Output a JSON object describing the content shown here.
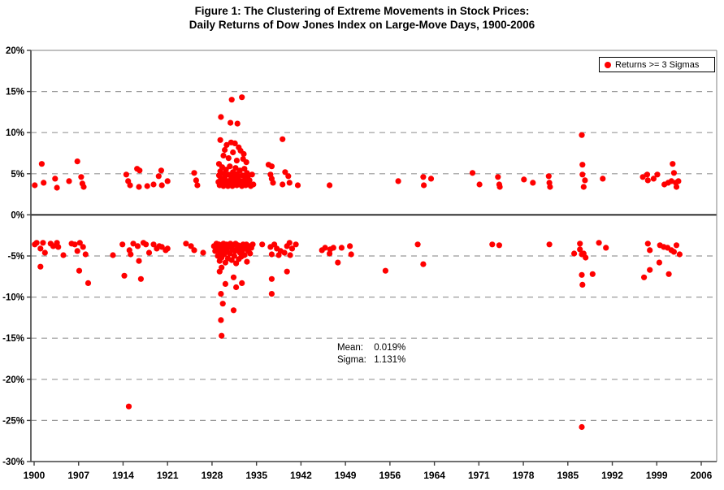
{
  "title": {
    "line1": "Figure 1: The Clustering of Extreme Movements in Stock Prices:",
    "line2": "Daily Returns of  Dow Jones Index on Large-Move Days, 1900-2006"
  },
  "legend": {
    "label": "Returns >= 3 Sigmas",
    "marker_color": "#FF0000"
  },
  "annotation": {
    "mean_label": "Mean:",
    "mean_value": "0.019%",
    "sigma_label": "Sigma:",
    "sigma_value": "1.131%"
  },
  "colors": {
    "point": "#FF0000",
    "gridline": "#999999",
    "zero_line": "#000000",
    "axis": "#404040",
    "border": "#808080",
    "text": "#000000"
  },
  "chart_data": {
    "type": "scatter",
    "title": "Figure 1: The Clustering of Extreme Movements in Stock Prices: Daily Returns of Dow Jones Index on Large-Move Days, 1900-2006",
    "xlabel": "",
    "ylabel": "",
    "legend_position": "top-right",
    "grid": "horizontal-dashed",
    "xlim": [
      1899.4,
      2008.5
    ],
    "ylim": [
      -30,
      20
    ],
    "x_ticks": [
      1900,
      1907,
      1914,
      1921,
      1928,
      1935,
      1942,
      1949,
      1956,
      1964,
      1971,
      1978,
      1985,
      1992,
      1999,
      2006
    ],
    "y_ticks": [
      {
        "value": 20,
        "label": "20%"
      },
      {
        "value": 15,
        "label": "15%"
      },
      {
        "value": 10,
        "label": "10%"
      },
      {
        "value": 5,
        "label": "5%"
      },
      {
        "value": 0,
        "label": "0%"
      },
      {
        "value": -5,
        "label": "-5%"
      },
      {
        "value": -10,
        "label": "-10%"
      },
      {
        "value": -15,
        "label": "-15%"
      },
      {
        "value": -20,
        "label": "-20%"
      },
      {
        "value": -25,
        "label": "-25%"
      },
      {
        "value": -30,
        "label": "-30%"
      }
    ],
    "series": [
      {
        "name": "Returns >= 3 Sigmas",
        "color": "#FF0000",
        "marker": "circle",
        "points": [
          [
            1900.1,
            3.6
          ],
          [
            1901.2,
            6.2
          ],
          [
            1901.5,
            3.9
          ],
          [
            1903.3,
            4.4
          ],
          [
            1903.6,
            3.3
          ],
          [
            1905.5,
            4.1
          ],
          [
            1906.8,
            6.5
          ],
          [
            1907.4,
            4.6
          ],
          [
            1907.6,
            3.8
          ],
          [
            1907.8,
            3.4
          ],
          [
            1914.5,
            4.9
          ],
          [
            1914.8,
            4.1
          ],
          [
            1915.1,
            3.6
          ],
          [
            1916.2,
            5.6
          ],
          [
            1916.6,
            5.4
          ],
          [
            1916.5,
            3.4
          ],
          [
            1917.8,
            3.5
          ],
          [
            1918.8,
            3.7
          ],
          [
            1919.6,
            4.7
          ],
          [
            1920.0,
            5.4
          ],
          [
            1920.1,
            3.6
          ],
          [
            1921.0,
            4.1
          ],
          [
            1925.2,
            5.1
          ],
          [
            1925.5,
            4.2
          ],
          [
            1925.7,
            3.6
          ],
          [
            1929.4,
            11.9
          ],
          [
            1930.9,
            11.2
          ],
          [
            1931.1,
            14.0
          ],
          [
            1932.0,
            11.1
          ],
          [
            1932.7,
            14.3
          ],
          [
            1929.3,
            9.1
          ],
          [
            1931.0,
            8.8
          ],
          [
            1930.3,
            8.5
          ],
          [
            1931.6,
            8.7
          ],
          [
            1932.2,
            8.2
          ],
          [
            1930.0,
            7.9
          ],
          [
            1931.3,
            7.6
          ],
          [
            1932.5,
            7.8
          ],
          [
            1933.0,
            7.4
          ],
          [
            1929.8,
            7.2
          ],
          [
            1930.6,
            6.9
          ],
          [
            1931.9,
            6.6
          ],
          [
            1932.9,
            6.8
          ],
          [
            1933.4,
            6.4
          ],
          [
            1929.1,
            6.2
          ],
          [
            1929.0,
            4.0
          ],
          [
            1929.1,
            4.8
          ],
          [
            1929.2,
            3.6
          ],
          [
            1929.3,
            5.3
          ],
          [
            1929.4,
            4.4
          ],
          [
            1929.5,
            3.8
          ],
          [
            1929.6,
            5.8
          ],
          [
            1929.7,
            4.2
          ],
          [
            1929.8,
            3.5
          ],
          [
            1929.9,
            5.0
          ],
          [
            1930.0,
            4.6
          ],
          [
            1930.1,
            3.7
          ],
          [
            1930.2,
            5.5
          ],
          [
            1930.4,
            4.1
          ],
          [
            1930.5,
            3.5
          ],
          [
            1930.6,
            4.9
          ],
          [
            1930.8,
            5.9
          ],
          [
            1930.9,
            3.8
          ],
          [
            1931.0,
            4.4
          ],
          [
            1931.2,
            3.5
          ],
          [
            1931.3,
            5.2
          ],
          [
            1931.4,
            4.7
          ],
          [
            1931.5,
            3.9
          ],
          [
            1931.7,
            5.7
          ],
          [
            1931.8,
            4.3
          ],
          [
            1931.9,
            3.6
          ],
          [
            1932.0,
            5.0
          ],
          [
            1932.1,
            4.5
          ],
          [
            1932.3,
            3.8
          ],
          [
            1932.4,
            5.4
          ],
          [
            1932.6,
            4.1
          ],
          [
            1932.7,
            3.5
          ],
          [
            1932.8,
            4.8
          ],
          [
            1933.0,
            3.9
          ],
          [
            1933.1,
            5.6
          ],
          [
            1933.2,
            4.3
          ],
          [
            1933.3,
            3.6
          ],
          [
            1933.5,
            5.1
          ],
          [
            1933.6,
            4.6
          ],
          [
            1933.7,
            3.8
          ],
          [
            1933.9,
            4.2
          ],
          [
            1934.1,
            3.5
          ],
          [
            1934.3,
            4.9
          ],
          [
            1934.5,
            3.7
          ],
          [
            1936.9,
            6.1
          ],
          [
            1937.2,
            4.9
          ],
          [
            1937.4,
            5.9
          ],
          [
            1937.4,
            4.4
          ],
          [
            1937.6,
            3.9
          ],
          [
            1939.1,
            9.2
          ],
          [
            1939.1,
            3.7
          ],
          [
            1939.5,
            5.2
          ],
          [
            1940.0,
            4.7
          ],
          [
            1940.2,
            3.9
          ],
          [
            1941.5,
            3.6
          ],
          [
            1946.5,
            3.6
          ],
          [
            1957.5,
            4.1
          ],
          [
            1962.0,
            4.6
          ],
          [
            1962.1,
            3.6
          ],
          [
            1963.4,
            4.4
          ],
          [
            1970.0,
            5.1
          ],
          [
            1971.1,
            3.7
          ],
          [
            1974.0,
            4.6
          ],
          [
            1974.2,
            3.7
          ],
          [
            1974.3,
            3.4
          ],
          [
            1978.1,
            4.3
          ],
          [
            1979.5,
            3.9
          ],
          [
            1982.0,
            4.7
          ],
          [
            1982.1,
            3.9
          ],
          [
            1982.2,
            3.4
          ],
          [
            1987.2,
            9.7
          ],
          [
            1987.3,
            6.1
          ],
          [
            1987.3,
            4.9
          ],
          [
            1987.7,
            4.2
          ],
          [
            1987.5,
            3.4
          ],
          [
            1990.5,
            4.4
          ],
          [
            1996.8,
            4.6
          ],
          [
            1997.5,
            4.9
          ],
          [
            1997.6,
            4.2
          ],
          [
            1998.5,
            4.4
          ],
          [
            1999.1,
            4.9
          ],
          [
            2000.2,
            3.7
          ],
          [
            2000.8,
            3.9
          ],
          [
            2001.3,
            4.1
          ],
          [
            2001.5,
            6.2
          ],
          [
            2001.7,
            5.1
          ],
          [
            2002.0,
            3.9
          ],
          [
            2002.1,
            3.4
          ],
          [
            2002.4,
            4.1
          ],
          [
            1900.1,
            -3.6
          ],
          [
            1900.4,
            -3.4
          ],
          [
            1901.0,
            -4.1
          ],
          [
            1901.0,
            -6.3
          ],
          [
            1901.4,
            -3.4
          ],
          [
            1901.7,
            -4.6
          ],
          [
            1902.6,
            -3.5
          ],
          [
            1903.0,
            -3.8
          ],
          [
            1903.6,
            -3.4
          ],
          [
            1903.8,
            -3.9
          ],
          [
            1904.6,
            -4.9
          ],
          [
            1905.9,
            -3.5
          ],
          [
            1906.4,
            -3.6
          ],
          [
            1906.8,
            -4.4
          ],
          [
            1907.1,
            -6.8
          ],
          [
            1907.2,
            -3.4
          ],
          [
            1907.7,
            -3.9
          ],
          [
            1908.1,
            -4.8
          ],
          [
            1908.5,
            -8.3
          ],
          [
            1912.4,
            -4.9
          ],
          [
            1913.9,
            -3.6
          ],
          [
            1914.2,
            -7.4
          ],
          [
            1914.9,
            -23.3
          ],
          [
            1915.0,
            -4.3
          ],
          [
            1915.2,
            -4.8
          ],
          [
            1915.6,
            -3.5
          ],
          [
            1916.3,
            -3.8
          ],
          [
            1916.5,
            -5.6
          ],
          [
            1916.8,
            -7.8
          ],
          [
            1917.2,
            -3.4
          ],
          [
            1917.6,
            -3.6
          ],
          [
            1918.1,
            -4.6
          ],
          [
            1918.8,
            -3.6
          ],
          [
            1919.3,
            -4.1
          ],
          [
            1919.7,
            -3.8
          ],
          [
            1920.1,
            -3.9
          ],
          [
            1920.7,
            -4.3
          ],
          [
            1921.0,
            -4.1
          ],
          [
            1923.9,
            -3.5
          ],
          [
            1924.7,
            -3.8
          ],
          [
            1925.2,
            -4.3
          ],
          [
            1926.6,
            -4.6
          ],
          [
            1928.3,
            -3.8
          ],
          [
            1928.5,
            -4.4
          ],
          [
            1928.7,
            -3.5
          ],
          [
            1928.9,
            -5.0
          ],
          [
            1929.0,
            -4.1
          ],
          [
            1929.1,
            -3.6
          ],
          [
            1929.2,
            -5.6
          ],
          [
            1929.3,
            -4.6
          ],
          [
            1929.4,
            -3.8
          ],
          [
            1929.5,
            -5.2
          ],
          [
            1929.6,
            -4.3
          ],
          [
            1929.8,
            -3.5
          ],
          [
            1929.9,
            -4.8
          ],
          [
            1930.0,
            -4.0
          ],
          [
            1930.1,
            -5.8
          ],
          [
            1930.3,
            -3.6
          ],
          [
            1930.4,
            -4.5
          ],
          [
            1930.5,
            -5.3
          ],
          [
            1930.7,
            -3.9
          ],
          [
            1930.8,
            -4.7
          ],
          [
            1930.9,
            -3.5
          ],
          [
            1931.1,
            -5.5
          ],
          [
            1931.2,
            -4.2
          ],
          [
            1931.3,
            -3.7
          ],
          [
            1931.5,
            -5.0
          ],
          [
            1931.6,
            -4.4
          ],
          [
            1931.7,
            -3.5
          ],
          [
            1931.8,
            -5.9
          ],
          [
            1932.0,
            -4.1
          ],
          [
            1932.1,
            -3.7
          ],
          [
            1932.2,
            -5.4
          ],
          [
            1932.4,
            -4.6
          ],
          [
            1932.5,
            -3.8
          ],
          [
            1932.6,
            -5.1
          ],
          [
            1932.8,
            -4.3
          ],
          [
            1932.9,
            -3.6
          ],
          [
            1933.1,
            -4.9
          ],
          [
            1933.2,
            -4.0
          ],
          [
            1933.4,
            -3.6
          ],
          [
            1933.5,
            -5.7
          ],
          [
            1933.7,
            -4.4
          ],
          [
            1933.8,
            -3.8
          ],
          [
            1934.0,
            -4.7
          ],
          [
            1934.2,
            -4.0
          ],
          [
            1934.4,
            -3.6
          ],
          [
            1929.2,
            -6.9
          ],
          [
            1929.5,
            -6.4
          ],
          [
            1930.1,
            -8.4
          ],
          [
            1931.4,
            -7.6
          ],
          [
            1931.8,
            -8.8
          ],
          [
            1932.7,
            -8.3
          ],
          [
            1929.4,
            -9.6
          ],
          [
            1929.7,
            -10.8
          ],
          [
            1931.4,
            -11.6
          ],
          [
            1929.4,
            -12.8
          ],
          [
            1929.5,
            -14.7
          ],
          [
            1935.9,
            -3.6
          ],
          [
            1937.2,
            -3.9
          ],
          [
            1937.4,
            -4.8
          ],
          [
            1937.4,
            -7.8
          ],
          [
            1937.4,
            -9.6
          ],
          [
            1937.8,
            -3.6
          ],
          [
            1938.2,
            -4.1
          ],
          [
            1938.5,
            -4.9
          ],
          [
            1938.8,
            -4.4
          ],
          [
            1939.4,
            -4.6
          ],
          [
            1939.8,
            -3.8
          ],
          [
            1939.8,
            -6.9
          ],
          [
            1940.2,
            -3.4
          ],
          [
            1940.3,
            -4.9
          ],
          [
            1940.6,
            -4.1
          ],
          [
            1941.2,
            -3.6
          ],
          [
            1945.3,
            -4.3
          ],
          [
            1945.8,
            -4.0
          ],
          [
            1946.5,
            -4.7
          ],
          [
            1946.6,
            -4.2
          ],
          [
            1947.1,
            -4.0
          ],
          [
            1947.8,
            -5.8
          ],
          [
            1948.4,
            -4.0
          ],
          [
            1949.7,
            -3.8
          ],
          [
            1949.9,
            -4.8
          ],
          [
            1955.3,
            -6.8
          ],
          [
            1961.0,
            -3.6
          ],
          [
            1962.0,
            -6.0
          ],
          [
            1973.1,
            -3.6
          ],
          [
            1974.2,
            -3.7
          ],
          [
            1982.1,
            -3.6
          ],
          [
            1986.0,
            -4.7
          ],
          [
            1986.9,
            -3.5
          ],
          [
            1986.9,
            -4.2
          ],
          [
            1987.2,
            -4.8
          ],
          [
            1987.2,
            -7.3
          ],
          [
            1987.2,
            -25.8
          ],
          [
            1987.3,
            -8.5
          ],
          [
            1987.5,
            -4.7
          ],
          [
            1987.8,
            -5.2
          ],
          [
            1988.9,
            -7.2
          ],
          [
            1989.9,
            -3.4
          ],
          [
            1991.0,
            -4.0
          ],
          [
            1997.0,
            -7.6
          ],
          [
            1997.6,
            -3.5
          ],
          [
            1997.9,
            -4.3
          ],
          [
            1997.9,
            -6.7
          ],
          [
            1999.4,
            -5.8
          ],
          [
            1999.5,
            -3.7
          ],
          [
            2000.1,
            -3.9
          ],
          [
            2000.7,
            -4.0
          ],
          [
            2000.9,
            -7.2
          ],
          [
            2001.3,
            -4.3
          ],
          [
            2001.7,
            -4.5
          ],
          [
            2002.1,
            -3.7
          ],
          [
            2002.6,
            -4.8
          ]
        ]
      }
    ]
  }
}
